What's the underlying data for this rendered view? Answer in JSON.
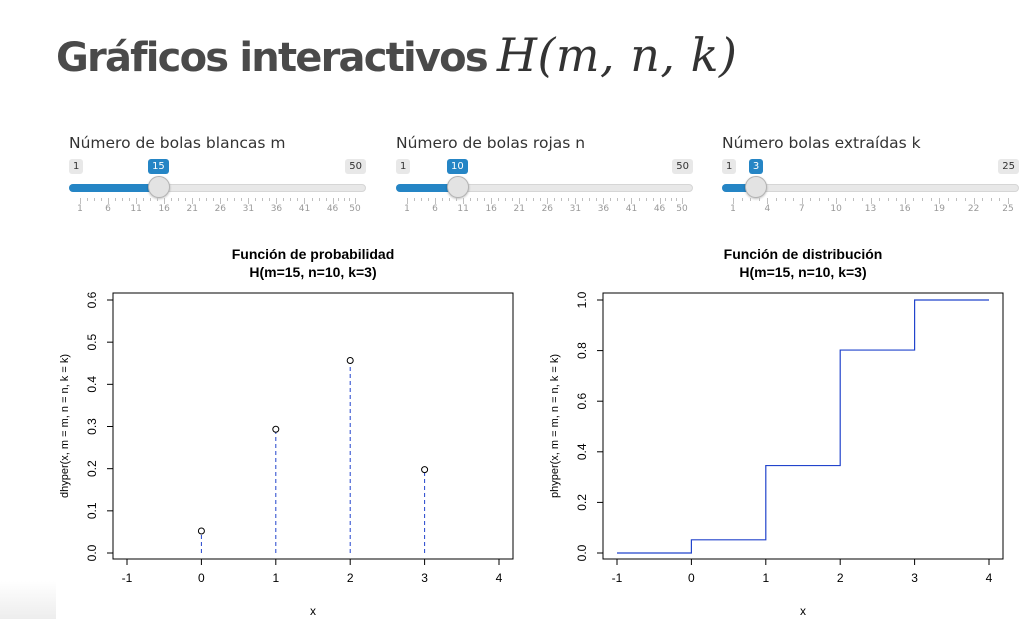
{
  "page": {
    "title_text": "Gráficos interactivos",
    "title_math": "H(m, n, k)"
  },
  "sliders": [
    {
      "label": "Número de bolas blancas m",
      "min": 1,
      "max": 50,
      "value": 15,
      "ticks": [
        "1",
        "6",
        "11",
        "16",
        "21",
        "26",
        "31",
        "36",
        "41",
        "46",
        "50"
      ]
    },
    {
      "label": "Número de bolas rojas n",
      "min": 1,
      "max": 50,
      "value": 10,
      "ticks": [
        "1",
        "6",
        "11",
        "16",
        "21",
        "26",
        "31",
        "36",
        "41",
        "46",
        "50"
      ]
    },
    {
      "label": "Número bolas extraídas k",
      "min": 1,
      "max": 25,
      "value": 3,
      "ticks": [
        "1",
        "4",
        "7",
        "10",
        "13",
        "16",
        "19",
        "22",
        "25"
      ]
    }
  ],
  "colors": {
    "accent": "#2585c5",
    "series": "#2244cc"
  },
  "chart_data": [
    {
      "type": "scatter",
      "title": "Función de probabilidad",
      "subtitle": "H(m=15, n=10, k=3)",
      "xlabel": "x",
      "ylabel": "dhyper(x, m = m, n = n, k = k)",
      "xlim": [
        -1,
        4
      ],
      "ylim": [
        0,
        0.6
      ],
      "xticks": [
        "-1",
        "0",
        "1",
        "2",
        "3",
        "4"
      ],
      "yticks": [
        "0.0",
        "0.1",
        "0.2",
        "0.3",
        "0.4",
        "0.5",
        "0.6"
      ],
      "x": [
        0,
        1,
        2,
        3
      ],
      "y": [
        0.0522,
        0.2935,
        0.4565,
        0.1978
      ],
      "vertical_dashed_lines": true,
      "grid": false
    },
    {
      "type": "line",
      "title": "Función de distribución",
      "subtitle": "H(m=15, n=10, k=3)",
      "xlabel": "x",
      "ylabel": "phyper(x, m = m, n = n, k = k)",
      "xlim": [
        -1,
        4
      ],
      "ylim": [
        0,
        1
      ],
      "xticks": [
        "-1",
        "0",
        "1",
        "2",
        "3",
        "4"
      ],
      "yticks": [
        "0.0",
        "0.2",
        "0.4",
        "0.6",
        "0.8",
        "1.0"
      ],
      "x": [
        -1,
        0,
        1,
        2,
        3,
        4
      ],
      "y": [
        0,
        0.0522,
        0.3457,
        0.8022,
        1.0,
        1.0
      ],
      "step": true,
      "grid": false
    }
  ]
}
